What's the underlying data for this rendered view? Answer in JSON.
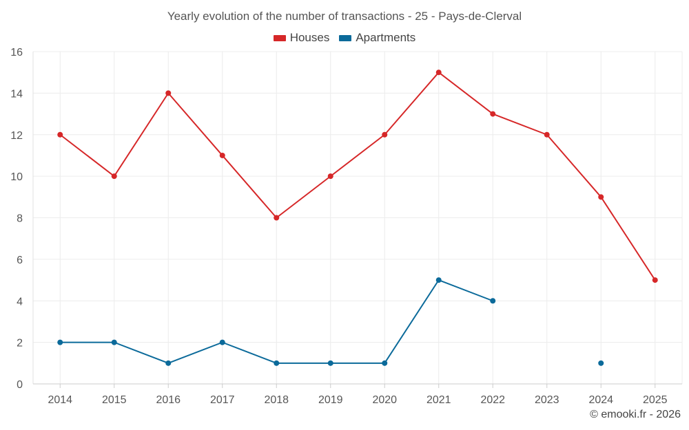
{
  "chart_data": {
    "type": "line",
    "title": "Yearly evolution of the number of transactions - 25 - Pays-de-Clerval",
    "xlabel": "",
    "ylabel": "",
    "categories": [
      "2014",
      "2015",
      "2016",
      "2017",
      "2018",
      "2019",
      "2020",
      "2021",
      "2022",
      "2023",
      "2024",
      "2025"
    ],
    "ylim": [
      0,
      16
    ],
    "yticks": [
      0,
      2,
      4,
      6,
      8,
      10,
      12,
      14,
      16
    ],
    "grid": true,
    "legend_position": "top-center",
    "series": [
      {
        "name": "Houses",
        "color": "#d62728",
        "values": [
          12,
          10,
          14,
          11,
          8,
          10,
          12,
          15,
          13,
          12,
          9,
          5
        ]
      },
      {
        "name": "Apartments",
        "color": "#0b6a9a",
        "values": [
          2,
          2,
          1,
          2,
          1,
          1,
          1,
          5,
          4,
          null,
          1,
          null
        ]
      }
    ]
  },
  "legend": {
    "houses_label": "Houses",
    "apartments_label": "Apartments",
    "houses_color": "#d62728",
    "apartments_color": "#0b6a9a"
  },
  "footer": {
    "credit": "© emooki.fr - 2026"
  }
}
